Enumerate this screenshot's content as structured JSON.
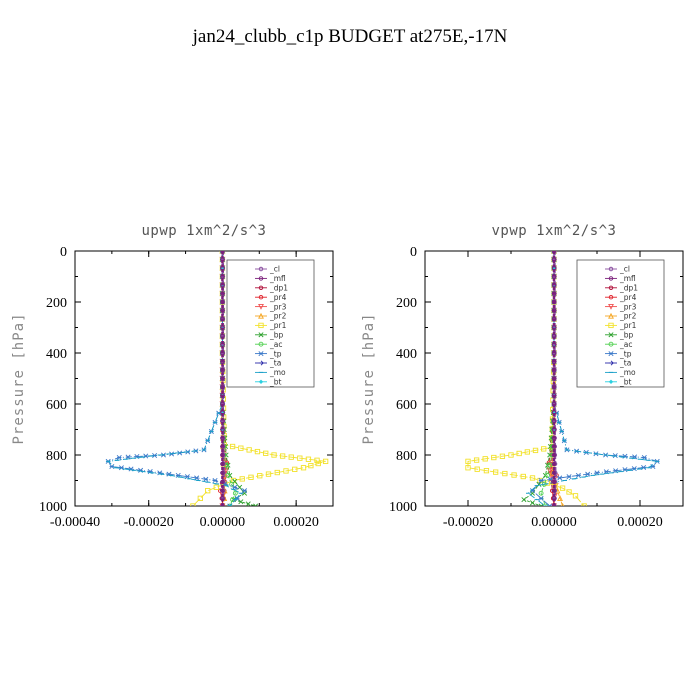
{
  "title": "jan24_clubb_c1p  BUDGET at275E,-17N",
  "chart_data": [
    {
      "type": "line",
      "title": "upwp   1xm^2/s^3",
      "ylabel": "Pressure [hPa]",
      "xlim": [
        -0.0004,
        0.0003
      ],
      "ylim": [
        1000,
        0
      ],
      "xticks": [
        "-0.00040",
        "-0.00020",
        "0.00000",
        "0.00020"
      ],
      "xtick_values": [
        -0.0004,
        -0.0002,
        0,
        0.0002
      ],
      "yticks": [
        "0",
        "200",
        "400",
        "600",
        "800",
        "1000"
      ],
      "ytick_values": [
        0,
        200,
        400,
        600,
        800,
        1000
      ],
      "legend": "top-right",
      "series": [
        {
          "name": "_cl",
          "color": "#8a4fa0",
          "marker": "circle",
          "x": [
            1e-06,
            1e-06,
            1e-06,
            1e-06,
            2e-06,
            3e-06,
            2e-06,
            1e-06
          ],
          "y": [
            0,
            200,
            400,
            600,
            800,
            870,
            940,
            1000
          ]
        },
        {
          "name": "_mfl",
          "color": "#9b1f9b",
          "marker": "circle",
          "x": [
            0,
            0,
            0,
            0,
            0,
            0,
            0,
            0
          ],
          "y": [
            0,
            200,
            400,
            600,
            800,
            870,
            940,
            1000
          ]
        },
        {
          "name": "_dp1",
          "color": "#b0103a",
          "marker": "circle",
          "x": [
            0,
            0,
            0,
            0,
            4e-06,
            8e-06,
            5e-06,
            2e-06
          ],
          "y": [
            0,
            200,
            400,
            600,
            800,
            870,
            940,
            1000
          ]
        },
        {
          "name": "_pr4",
          "color": "#e0202a",
          "marker": "circle",
          "x": [
            0,
            0,
            0,
            0,
            5e-06,
            1.2e-05,
            4e-06,
            -6e-06,
            2e-06
          ],
          "y": [
            0,
            200,
            400,
            600,
            780,
            830,
            880,
            940,
            1000
          ]
        },
        {
          "name": "_pr3",
          "color": "#f05050",
          "marker": "triangle-down",
          "x": [
            0,
            0,
            0,
            0,
            4e-06,
            1e-05,
            3e-06,
            0
          ],
          "y": [
            0,
            200,
            400,
            600,
            800,
            860,
            920,
            1000
          ]
        },
        {
          "name": "_pr2",
          "color": "#f5a623",
          "marker": "triangle-up",
          "x": [
            0,
            0,
            0,
            0,
            2e-06,
            4e-06,
            6e-06,
            4e-06
          ],
          "y": [
            0,
            200,
            400,
            600,
            800,
            870,
            940,
            1000
          ]
        },
        {
          "name": "_pr1",
          "color": "#f2e12a",
          "marker": "square",
          "x": [
            0,
            0,
            0,
            5e-06,
            0.00014,
            0.00028,
            0.00022,
            3e-05,
            -4e-05,
            -6e-05,
            -8e-05
          ],
          "y": [
            0,
            200,
            400,
            760,
            800,
            825,
            850,
            900,
            940,
            970,
            1000
          ]
        },
        {
          "name": "_bp",
          "color": "#2ca02c",
          "marker": "x",
          "x": [
            0,
            0,
            0,
            0,
            1e-05,
            2e-05,
            6e-05,
            3e-05,
            9e-05
          ],
          "y": [
            0,
            200,
            400,
            600,
            800,
            880,
            950,
            975,
            1000
          ]
        },
        {
          "name": "_ac",
          "color": "#50d050",
          "marker": "circle-open",
          "x": [
            0,
            0,
            0,
            0,
            5e-06,
            1.5e-05,
            3.5e-05,
            2e-05
          ],
          "y": [
            0,
            200,
            400,
            600,
            800,
            880,
            950,
            1000
          ]
        },
        {
          "name": "_tp",
          "color": "#3a78c8",
          "marker": "star",
          "x": [
            0,
            0,
            0,
            0,
            -5e-05,
            -0.00016,
            -0.00028,
            -0.00031,
            -0.0003,
            -0.00017,
            -2e-05,
            6e-05,
            4e-05,
            2e-05
          ],
          "y": [
            0,
            200,
            400,
            600,
            780,
            800,
            810,
            825,
            845,
            870,
            900,
            940,
            970,
            1000
          ]
        },
        {
          "name": "_ta",
          "color": "#2a2aa8",
          "marker": "arrow",
          "x": [
            0,
            0,
            0,
            0,
            0,
            0,
            0,
            0
          ],
          "y": [
            0,
            200,
            400,
            600,
            800,
            870,
            940,
            1000
          ]
        },
        {
          "name": "_mo",
          "color": "#1aa0c8",
          "marker": "dash",
          "x": [
            0,
            0,
            0,
            0,
            -5e-05,
            -0.00017,
            -0.00031,
            -0.00029,
            -0.00014,
            1e-05,
            5e-05,
            2e-05
          ],
          "y": [
            0,
            200,
            400,
            600,
            780,
            800,
            825,
            850,
            880,
            920,
            950,
            1000
          ]
        },
        {
          "name": "_bt",
          "color": "#2ad0e0",
          "marker": "diamond",
          "x": [
            0,
            0,
            0,
            0,
            0,
            0,
            0,
            0
          ],
          "y": [
            0,
            200,
            400,
            600,
            800,
            870,
            940,
            1000
          ]
        }
      ]
    },
    {
      "type": "line",
      "title": "vpwp   1xm^2/s^3",
      "ylabel": "Pressure [hPa]",
      "xlim": [
        -0.0003,
        0.0003
      ],
      "ylim": [
        1000,
        0
      ],
      "xticks": [
        "-0.00020",
        "0.00000",
        "0.00020"
      ],
      "xtick_values": [
        -0.0002,
        0,
        0.0002
      ],
      "yticks": [
        "0",
        "200",
        "400",
        "600",
        "800",
        "1000"
      ],
      "ytick_values": [
        0,
        200,
        400,
        600,
        800,
        1000
      ],
      "legend": "top-right",
      "series": [
        {
          "name": "_cl",
          "color": "#8a4fa0",
          "marker": "circle",
          "x": [
            1e-06,
            1e-06,
            1e-06,
            1e-06,
            2e-06,
            3e-06,
            2e-06,
            1e-06
          ],
          "y": [
            0,
            200,
            400,
            600,
            800,
            870,
            940,
            1000
          ]
        },
        {
          "name": "_mfl",
          "color": "#9b1f9b",
          "marker": "circle",
          "x": [
            0,
            0,
            0,
            0,
            0,
            0,
            0,
            0
          ],
          "y": [
            0,
            200,
            400,
            600,
            800,
            870,
            940,
            1000
          ]
        },
        {
          "name": "_dp1",
          "color": "#b0103a",
          "marker": "circle",
          "x": [
            0,
            0,
            0,
            0,
            -4e-06,
            -8e-06,
            -4e-06,
            0
          ],
          "y": [
            0,
            200,
            400,
            600,
            800,
            870,
            940,
            1000
          ]
        },
        {
          "name": "_pr4",
          "color": "#e0202a",
          "marker": "circle",
          "x": [
            0,
            0,
            0,
            0,
            -6e-06,
            -1.2e-05,
            6e-06,
            -4e-06,
            0
          ],
          "y": [
            0,
            200,
            400,
            600,
            780,
            830,
            880,
            940,
            1000
          ]
        },
        {
          "name": "_pr3",
          "color": "#f05050",
          "marker": "triangle-down",
          "x": [
            0,
            0,
            0,
            0,
            -4e-06,
            -1e-05,
            4e-06,
            0
          ],
          "y": [
            0,
            200,
            400,
            600,
            800,
            860,
            920,
            1000
          ]
        },
        {
          "name": "_pr2",
          "color": "#f5a623",
          "marker": "triangle-up",
          "x": [
            0,
            0,
            0,
            0,
            -2e-06,
            -4e-06,
            8e-06,
            2e-05
          ],
          "y": [
            0,
            200,
            400,
            600,
            800,
            870,
            940,
            1000
          ]
        },
        {
          "name": "_pr1",
          "color": "#f2e12a",
          "marker": "square",
          "x": [
            0,
            0,
            0,
            -5e-06,
            -0.0001,
            -0.0002,
            -0.0002,
            -5e-05,
            2e-05,
            5e-05,
            7e-05
          ],
          "y": [
            0,
            200,
            400,
            770,
            800,
            825,
            850,
            890,
            930,
            960,
            1000
          ]
        },
        {
          "name": "_bp",
          "color": "#2ca02c",
          "marker": "x",
          "x": [
            0,
            0,
            0,
            0,
            -1e-05,
            -2e-05,
            -5e-05,
            -7e-05,
            -3e-05
          ],
          "y": [
            0,
            200,
            400,
            600,
            800,
            880,
            950,
            975,
            1000
          ]
        },
        {
          "name": "_ac",
          "color": "#50d050",
          "marker": "circle-open",
          "x": [
            0,
            0,
            0,
            0,
            -5e-06,
            -1.5e-05,
            -3e-05,
            -2e-05
          ],
          "y": [
            0,
            200,
            400,
            600,
            800,
            880,
            950,
            1000
          ]
        },
        {
          "name": "_tp",
          "color": "#3a78c8",
          "marker": "star",
          "x": [
            0,
            0,
            0,
            0,
            3e-05,
            0.00012,
            0.00021,
            0.00024,
            0.00023,
            0.0001,
            -3e-05,
            -5e-05,
            -3e-05,
            -1e-05
          ],
          "y": [
            0,
            200,
            400,
            600,
            780,
            800,
            810,
            825,
            845,
            870,
            900,
            940,
            970,
            1000
          ]
        },
        {
          "name": "_ta",
          "color": "#2a2aa8",
          "marker": "arrow",
          "x": [
            0,
            0,
            0,
            0,
            0,
            0,
            0,
            0
          ],
          "y": [
            0,
            200,
            400,
            600,
            800,
            870,
            940,
            1000
          ]
        },
        {
          "name": "_mo",
          "color": "#1aa0c8",
          "marker": "dash",
          "x": [
            0,
            0,
            0,
            0,
            3e-05,
            0.00012,
            0.00024,
            0.00022,
            9e-05,
            -4e-05,
            -6e-05,
            -2e-05
          ],
          "y": [
            0,
            200,
            400,
            600,
            780,
            800,
            825,
            850,
            880,
            920,
            950,
            1000
          ]
        },
        {
          "name": "_bt",
          "color": "#2ad0e0",
          "marker": "diamond",
          "x": [
            0,
            0,
            0,
            0,
            0,
            0,
            0,
            0
          ],
          "y": [
            0,
            200,
            400,
            600,
            800,
            870,
            940,
            1000
          ]
        }
      ]
    }
  ]
}
